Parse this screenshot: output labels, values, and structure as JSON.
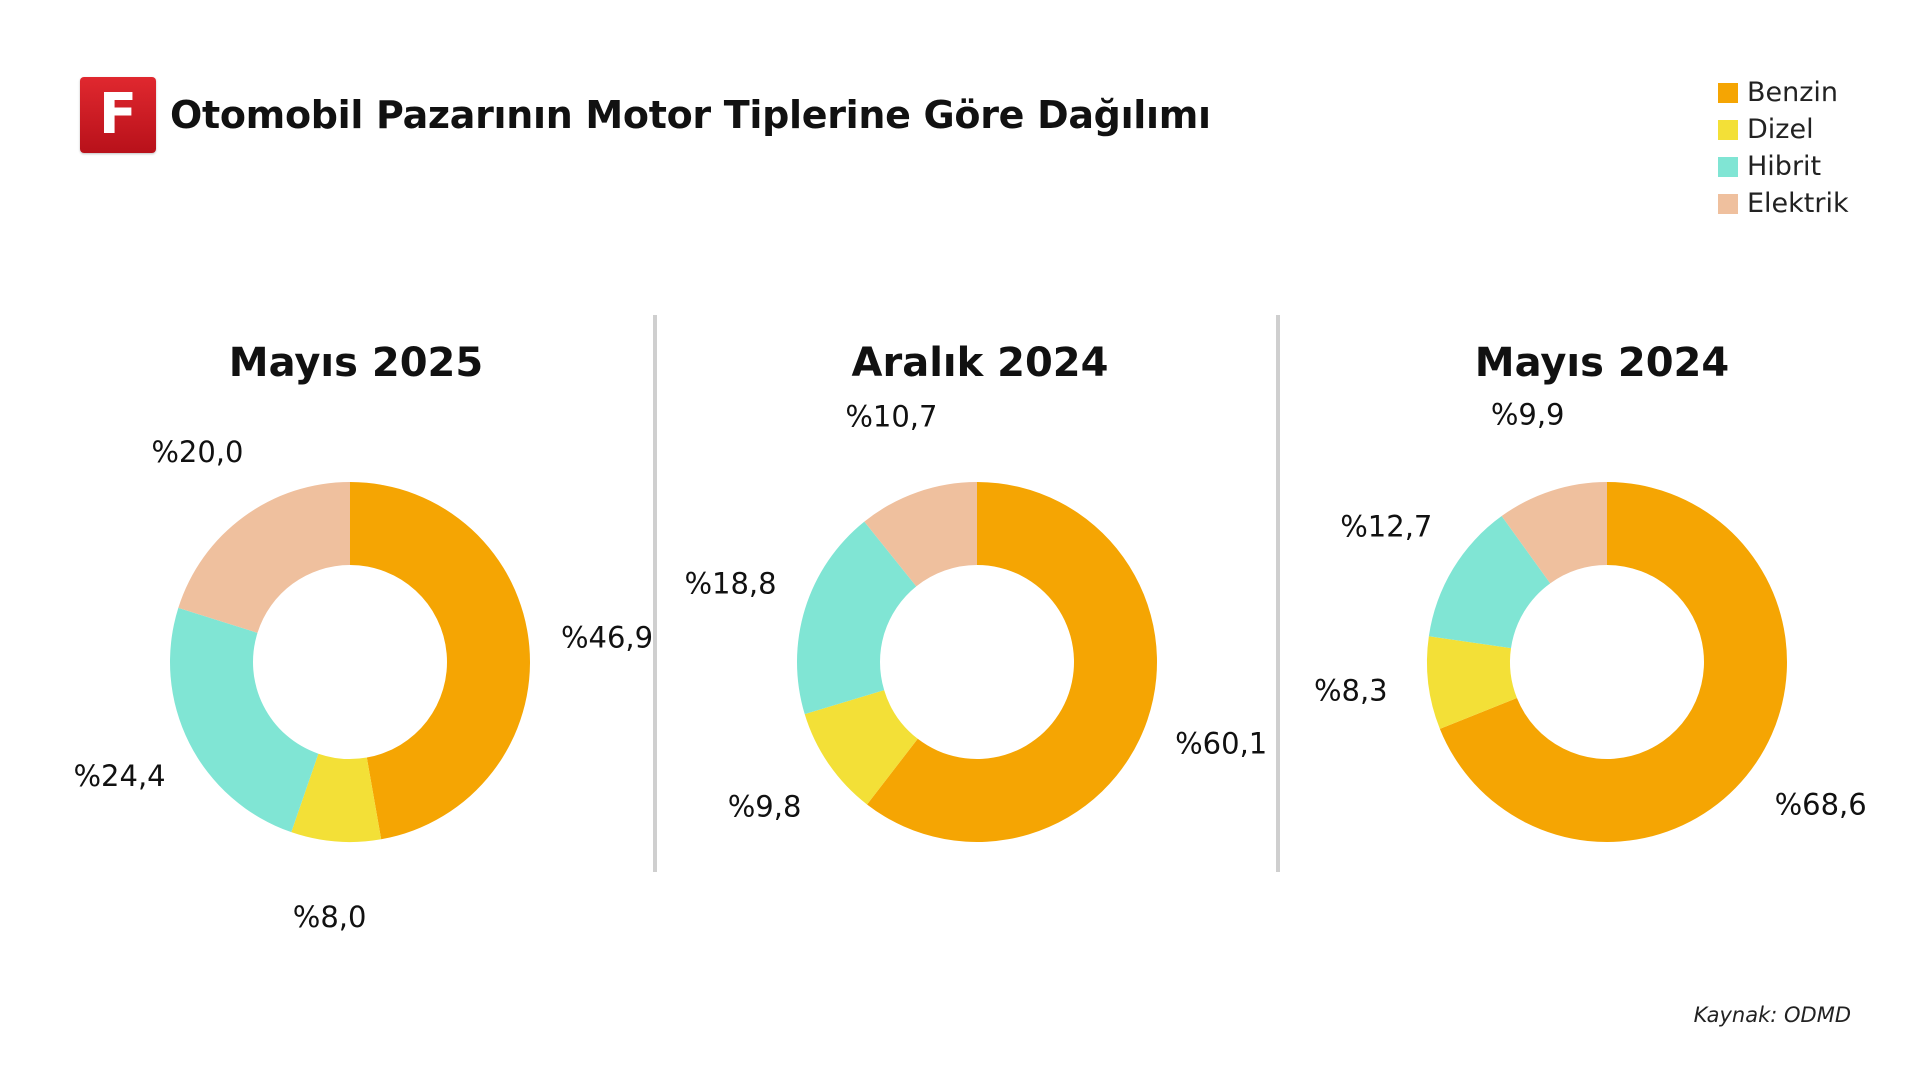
{
  "header": {
    "logo_letter": "F",
    "title": "Otomobil Pazarının Motor Tiplerine Göre Dağılımı"
  },
  "legend": [
    {
      "label": "Benzin",
      "color": "#f5a503"
    },
    {
      "label": "Dizel",
      "color": "#f3e037"
    },
    {
      "label": "Hibrit",
      "color": "#80e5d4"
    },
    {
      "label": "Elektrik",
      "color": "#efc09e"
    }
  ],
  "source": "Kaynak: ODMD",
  "chart_data": [
    {
      "type": "pie",
      "title": "Mayıs 2025",
      "categories": [
        "Benzin",
        "Dizel",
        "Hibrit",
        "Elektrik"
      ],
      "values": [
        46.9,
        8.0,
        24.4,
        20.0
      ],
      "data_labels": [
        "%46,9",
        "%8,0",
        "%24,4",
        "%20,0"
      ]
    },
    {
      "type": "pie",
      "title": "Aralık 2024",
      "categories": [
        "Benzin",
        "Dizel",
        "Hibrit",
        "Elektrik"
      ],
      "values": [
        60.1,
        9.8,
        18.8,
        10.7
      ],
      "data_labels": [
        "%60,1",
        "%9,8",
        "%18,8",
        "%10,7"
      ]
    },
    {
      "type": "pie",
      "title": "Mayıs 2024",
      "categories": [
        "Benzin",
        "Dizel",
        "Hibrit",
        "Elektrik"
      ],
      "values": [
        68.6,
        8.3,
        12.7,
        9.9
      ],
      "data_labels": [
        "%68,6",
        "%8,3",
        "%12,7",
        "%9,9"
      ]
    }
  ]
}
